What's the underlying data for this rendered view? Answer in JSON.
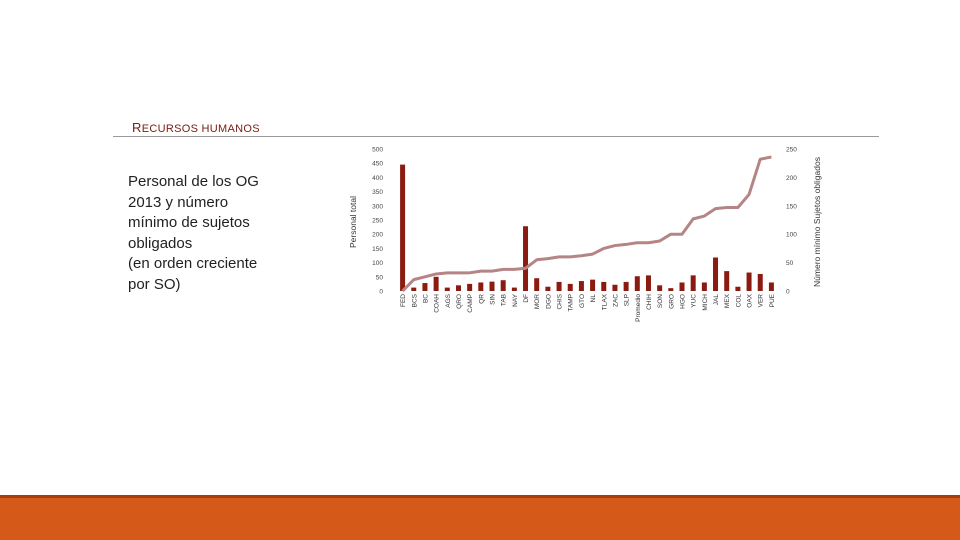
{
  "slide": {
    "section_title_first": "R",
    "section_title_rest": "ECURSOS HUMANOS",
    "heading": "Personal de los OG\n2013 y número\nmínimo de sujetos\nobligados\n(en orden creciente\npor SO)"
  },
  "colors": {
    "bar": "#8b1a10",
    "line": "#b58585",
    "accent_bar": "#d55a19",
    "accent_line": "#a63d0c"
  },
  "chart_data": {
    "type": "bar",
    "categories": [
      "FED",
      "BCS",
      "BC",
      "COAH",
      "AGS",
      "QRO",
      "CAMP",
      "QR",
      "SIN",
      "TAB",
      "NAY",
      "DF",
      "MOR",
      "DGO",
      "CHIS",
      "TAMP",
      "GTO",
      "NL",
      "TLAX",
      "ZAC",
      "SLP",
      "Promedio",
      "CHIH",
      "SON",
      "GRO",
      "HGO",
      "YUC",
      "MICH",
      "JAL",
      "MEX",
      "COL",
      "OAX",
      "VER",
      "PUE"
    ],
    "series": [
      {
        "axis": "left",
        "values": [
          445,
          12,
          28,
          50,
          12,
          20,
          25,
          30,
          33,
          38,
          12,
          228,
          45,
          15,
          32,
          25,
          35,
          40,
          32,
          22,
          32,
          52,
          55,
          20,
          10,
          30,
          55,
          30,
          118,
          70,
          15,
          65,
          60,
          30
        ]
      },
      {
        "type": "line",
        "axis": "right",
        "values": [
          0,
          20,
          25,
          30,
          32,
          32,
          32,
          35,
          35,
          38,
          38,
          40,
          55,
          57,
          60,
          60,
          62,
          65,
          75,
          80,
          82,
          85,
          85,
          88,
          100,
          100,
          127,
          132,
          145,
          147,
          147,
          170,
          232,
          236
        ]
      }
    ],
    "ylabel": "Personal total",
    "y2label": "Número mínimo Sujetos obligados",
    "ylim": [
      0,
      500
    ],
    "y2lim": [
      0,
      250
    ],
    "yticks": [
      "0",
      "50",
      "100",
      "150",
      "200",
      "250",
      "300",
      "350",
      "400",
      "450",
      "500"
    ],
    "y2ticks": [
      "0",
      "50",
      "100",
      "150",
      "200",
      "250"
    ],
    "grid": false,
    "legend": "none"
  }
}
